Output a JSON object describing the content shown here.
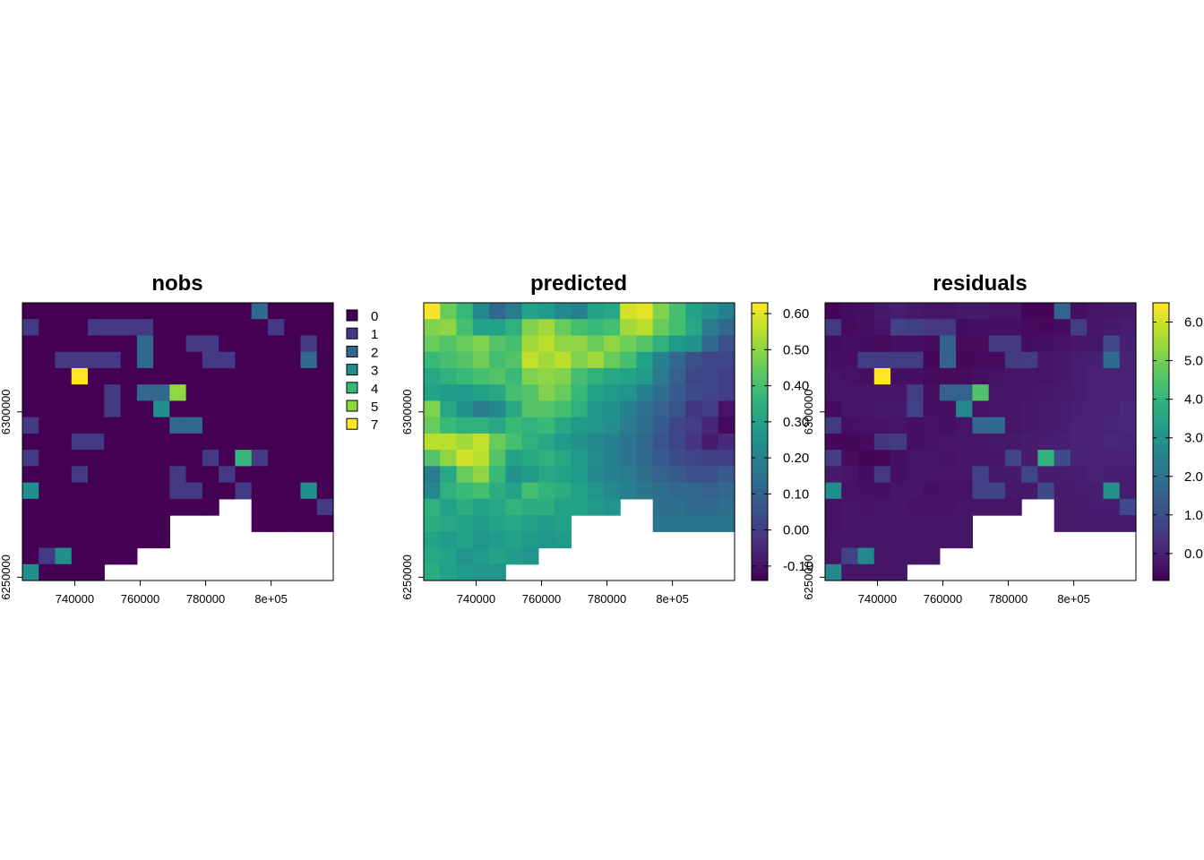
{
  "colors": {
    "viridis": [
      "#440154",
      "#482878",
      "#3E4A89",
      "#31688E",
      "#26828E",
      "#1F9E89",
      "#35B779",
      "#6DCD59",
      "#B4DE2C",
      "#FDE725"
    ],
    "background": "#FFFFFF"
  },
  "chart_data": [
    {
      "type": "heatmap",
      "title": "nobs",
      "x_ticks": [
        "740000",
        "760000",
        "780000",
        "8e+05"
      ],
      "x_tick_values": [
        740000,
        760000,
        780000,
        800000
      ],
      "y_ticks": [
        "6250000",
        "6300000"
      ],
      "y_tick_values": [
        6250000,
        6300000
      ],
      "xlim": [
        724000,
        819000
      ],
      "ylim": [
        6249000,
        6333000
      ],
      "grid": {
        "cols": 19,
        "rows": 17
      },
      "legend": {
        "kind": "categorical",
        "placement": "right",
        "labels": [
          "0",
          "1",
          "2",
          "3",
          "4",
          "5",
          "7"
        ],
        "values": [
          0,
          1,
          2,
          3,
          4,
          5,
          7
        ],
        "colors": [
          "#440154",
          "#443A83",
          "#31688E",
          "#21908C",
          "#35B779",
          "#8FD744",
          "#FDE725"
        ]
      },
      "values": [
        [
          0,
          0,
          0,
          0,
          0,
          0,
          0,
          0,
          0,
          0,
          0,
          0,
          0,
          0,
          2,
          0,
          0,
          0,
          0
        ],
        [
          1,
          0,
          0,
          0,
          1,
          1,
          1,
          1,
          0,
          0,
          0,
          0,
          0,
          0,
          0,
          1,
          0,
          0,
          0
        ],
        [
          0,
          0,
          0,
          0,
          0,
          0,
          0,
          2,
          0,
          0,
          1,
          1,
          0,
          0,
          0,
          0,
          0,
          1,
          0
        ],
        [
          0,
          0,
          1,
          1,
          1,
          1,
          0,
          2,
          0,
          0,
          0,
          1,
          1,
          0,
          0,
          0,
          0,
          2,
          0
        ],
        [
          0,
          0,
          0,
          7,
          0,
          0,
          0,
          0,
          0,
          0,
          0,
          0,
          0,
          0,
          0,
          0,
          0,
          0,
          0
        ],
        [
          0,
          0,
          0,
          0,
          0,
          1,
          0,
          2,
          2,
          5,
          0,
          0,
          0,
          0,
          0,
          0,
          0,
          0,
          0
        ],
        [
          0,
          0,
          0,
          0,
          0,
          1,
          0,
          0,
          3,
          0,
          0,
          0,
          0,
          0,
          0,
          0,
          0,
          0,
          0
        ],
        [
          1,
          0,
          0,
          0,
          0,
          0,
          0,
          0,
          0,
          2,
          2,
          0,
          0,
          0,
          0,
          0,
          0,
          0,
          0
        ],
        [
          0,
          0,
          0,
          1,
          1,
          0,
          0,
          0,
          0,
          0,
          0,
          0,
          0,
          0,
          0,
          0,
          0,
          0,
          0
        ],
        [
          1,
          0,
          0,
          0,
          0,
          0,
          0,
          0,
          0,
          0,
          0,
          1,
          0,
          4,
          1,
          0,
          0,
          0,
          0
        ],
        [
          0,
          0,
          0,
          1,
          0,
          0,
          0,
          0,
          0,
          1,
          0,
          0,
          1,
          0,
          0,
          0,
          0,
          0,
          0
        ],
        [
          3,
          0,
          0,
          0,
          0,
          0,
          0,
          0,
          0,
          1,
          1,
          0,
          0,
          1,
          0,
          0,
          0,
          3,
          0
        ],
        [
          0,
          0,
          0,
          0,
          0,
          0,
          0,
          0,
          0,
          0,
          0,
          0,
          null,
          null,
          0,
          0,
          0,
          0,
          1
        ],
        [
          0,
          0,
          0,
          0,
          0,
          0,
          0,
          0,
          0,
          null,
          null,
          null,
          null,
          null,
          0,
          0,
          0,
          0,
          0
        ],
        [
          0,
          0,
          0,
          0,
          0,
          0,
          0,
          0,
          0,
          null,
          null,
          null,
          null,
          null,
          null,
          null,
          null,
          null,
          null
        ],
        [
          0,
          1,
          3,
          0,
          0,
          0,
          0,
          null,
          null,
          null,
          null,
          null,
          null,
          null,
          null,
          null,
          null,
          null,
          null
        ],
        [
          3,
          0,
          0,
          0,
          0,
          null,
          null,
          null,
          null,
          null,
          null,
          null,
          null,
          null,
          null,
          null,
          null,
          null,
          null
        ]
      ]
    },
    {
      "type": "heatmap",
      "title": "predicted",
      "x_ticks": [
        "740000",
        "760000",
        "780000",
        "8e+05"
      ],
      "x_tick_values": [
        740000,
        760000,
        780000,
        800000
      ],
      "y_ticks": [
        "6250000",
        "6300000"
      ],
      "y_tick_values": [
        6250000,
        6300000
      ],
      "xlim": [
        724000,
        819000
      ],
      "ylim": [
        6249000,
        6333000
      ],
      "grid": {
        "cols": 19,
        "rows": 17
      },
      "legend": {
        "kind": "continuous",
        "placement": "right",
        "min": -0.14,
        "max": 0.63,
        "ticks": [
          "-0.10",
          "0.00",
          "0.10",
          "0.20",
          "0.30",
          "0.40",
          "0.50",
          "0.60"
        ],
        "tick_values": [
          -0.1,
          0.0,
          0.1,
          0.2,
          0.3,
          0.4,
          0.5,
          0.6
        ]
      },
      "values": [
        [
          0.62,
          0.45,
          0.38,
          0.22,
          0.12,
          0.18,
          0.3,
          0.28,
          0.22,
          0.2,
          0.3,
          0.32,
          0.58,
          0.6,
          0.48,
          0.4,
          0.3,
          0.25,
          0.2
        ],
        [
          0.48,
          0.5,
          0.4,
          0.3,
          0.3,
          0.35,
          0.48,
          0.52,
          0.45,
          0.4,
          0.38,
          0.4,
          0.52,
          0.55,
          0.45,
          0.4,
          0.32,
          0.18,
          0.12
        ],
        [
          0.45,
          0.42,
          0.45,
          0.48,
          0.42,
          0.4,
          0.52,
          0.55,
          0.5,
          0.5,
          0.45,
          0.5,
          0.46,
          0.42,
          0.35,
          0.28,
          0.25,
          0.12,
          0.05
        ],
        [
          0.38,
          0.4,
          0.42,
          0.46,
          0.4,
          0.42,
          0.56,
          0.52,
          0.55,
          0.48,
          0.52,
          0.45,
          0.4,
          0.3,
          0.2,
          0.12,
          0.05,
          0.02,
          0.02
        ],
        [
          0.32,
          0.35,
          0.38,
          0.4,
          0.42,
          0.38,
          0.48,
          0.5,
          0.48,
          0.4,
          0.35,
          0.32,
          0.3,
          0.28,
          0.18,
          0.1,
          0.02,
          0.02,
          0.0
        ],
        [
          0.3,
          0.28,
          0.28,
          0.3,
          0.32,
          0.4,
          0.42,
          0.48,
          0.45,
          0.38,
          0.3,
          0.28,
          0.26,
          0.2,
          0.14,
          0.08,
          0.04,
          0.02,
          0.0
        ],
        [
          0.48,
          0.32,
          0.25,
          0.18,
          0.22,
          0.32,
          0.42,
          0.42,
          0.4,
          0.35,
          0.26,
          0.25,
          0.2,
          0.15,
          0.1,
          0.06,
          -0.02,
          0.0,
          -0.1
        ],
        [
          0.45,
          0.38,
          0.35,
          0.35,
          0.32,
          0.38,
          0.36,
          0.38,
          0.32,
          0.28,
          0.26,
          0.24,
          0.18,
          0.14,
          0.08,
          0.02,
          0.0,
          -0.06,
          -0.12
        ],
        [
          0.55,
          0.55,
          0.52,
          0.56,
          0.45,
          0.4,
          0.35,
          0.32,
          0.28,
          0.25,
          0.22,
          0.2,
          0.16,
          0.12,
          0.06,
          0.02,
          -0.02,
          -0.08,
          -0.05
        ],
        [
          0.42,
          0.5,
          0.58,
          0.55,
          0.42,
          0.3,
          0.32,
          0.35,
          0.32,
          0.28,
          0.24,
          0.2,
          0.16,
          0.12,
          0.08,
          0.04,
          0.02,
          0.0,
          0.0
        ],
        [
          0.18,
          0.32,
          0.45,
          0.5,
          0.38,
          0.25,
          0.28,
          0.32,
          0.3,
          0.28,
          0.22,
          0.2,
          0.18,
          0.14,
          0.1,
          0.08,
          0.05,
          0.05,
          0.08
        ],
        [
          0.22,
          0.35,
          0.38,
          0.4,
          0.34,
          0.3,
          0.4,
          0.36,
          0.34,
          0.3,
          0.26,
          0.22,
          0.2,
          0.16,
          0.14,
          0.12,
          0.12,
          0.1,
          0.12
        ],
        [
          0.35,
          0.3,
          0.34,
          0.3,
          0.32,
          0.36,
          0.34,
          0.34,
          0.3,
          0.3,
          0.28,
          0.26,
          null,
          null,
          0.14,
          0.14,
          0.12,
          0.12,
          0.14
        ],
        [
          0.34,
          0.32,
          0.3,
          0.28,
          0.3,
          0.32,
          0.3,
          0.28,
          0.3,
          null,
          null,
          null,
          null,
          null,
          0.16,
          0.16,
          0.16,
          0.16,
          0.16
        ],
        [
          0.3,
          0.28,
          0.3,
          0.26,
          0.28,
          0.3,
          0.28,
          0.26,
          0.28,
          null,
          null,
          null,
          null,
          null,
          null,
          null,
          null,
          null,
          null
        ],
        [
          0.32,
          0.3,
          0.26,
          0.28,
          0.3,
          0.28,
          0.26,
          null,
          null,
          null,
          null,
          null,
          null,
          null,
          null,
          null,
          null,
          null,
          null
        ],
        [
          0.34,
          0.3,
          0.28,
          0.26,
          0.26,
          null,
          null,
          null,
          null,
          null,
          null,
          null,
          null,
          null,
          null,
          null,
          null,
          null,
          null
        ]
      ]
    },
    {
      "type": "heatmap",
      "title": "residuals",
      "x_ticks": [
        "740000",
        "760000",
        "780000",
        "8e+05"
      ],
      "x_tick_values": [
        740000,
        760000,
        780000,
        800000
      ],
      "y_ticks": [
        "6250000",
        "6300000"
      ],
      "y_tick_values": [
        6250000,
        6300000
      ],
      "xlim": [
        724000,
        819000
      ],
      "ylim": [
        6249000,
        6333000
      ],
      "grid": {
        "cols": 19,
        "rows": 17
      },
      "legend": {
        "kind": "continuous",
        "placement": "right",
        "min": -0.7,
        "max": 6.5,
        "ticks": [
          "0.0",
          "1.0",
          "2.0",
          "3.0",
          "4.0",
          "5.0",
          "6.0"
        ],
        "tick_values": [
          0,
          1,
          2,
          3,
          4,
          5,
          6
        ]
      },
      "values": [
        [
          -0.6,
          -0.45,
          -0.4,
          -0.2,
          -0.1,
          -0.2,
          -0.3,
          -0.3,
          -0.2,
          -0.2,
          -0.3,
          -0.3,
          -0.6,
          -0.6,
          1.5,
          -0.4,
          -0.3,
          -0.25,
          -0.2
        ],
        [
          0.5,
          -0.5,
          -0.4,
          -0.3,
          0.7,
          0.65,
          0.5,
          0.5,
          -0.45,
          -0.4,
          -0.4,
          -0.4,
          -0.5,
          -0.55,
          -0.45,
          0.6,
          -0.3,
          -0.2,
          -0.1
        ],
        [
          -0.45,
          -0.4,
          -0.45,
          -0.5,
          -0.4,
          -0.4,
          -0.5,
          1.45,
          -0.5,
          -0.5,
          0.55,
          0.5,
          -0.45,
          -0.4,
          -0.35,
          -0.3,
          -0.25,
          0.9,
          -0.05
        ],
        [
          -0.4,
          -0.4,
          0.6,
          0.55,
          0.6,
          0.6,
          -0.55,
          1.5,
          -0.55,
          -0.5,
          -0.5,
          0.55,
          0.6,
          -0.3,
          -0.2,
          -0.1,
          -0.05,
          1.8,
          0.0
        ],
        [
          -0.3,
          -0.35,
          -0.4,
          6.5,
          -0.4,
          -0.4,
          -0.5,
          -0.5,
          -0.5,
          -0.4,
          -0.35,
          -0.3,
          -0.3,
          -0.3,
          -0.2,
          -0.1,
          0.0,
          0.0,
          0.0
        ],
        [
          -0.3,
          -0.3,
          -0.3,
          -0.3,
          -0.3,
          0.6,
          -0.4,
          1.5,
          1.55,
          4.5,
          -0.3,
          -0.3,
          -0.25,
          -0.2,
          -0.15,
          -0.1,
          0.0,
          0.0,
          0.0
        ],
        [
          -0.5,
          -0.3,
          -0.25,
          -0.2,
          -0.2,
          0.7,
          -0.4,
          -0.4,
          2.6,
          -0.35,
          -0.25,
          -0.25,
          -0.2,
          -0.15,
          -0.1,
          -0.05,
          0.0,
          0.0,
          0.1
        ],
        [
          0.55,
          -0.4,
          -0.35,
          -0.35,
          -0.3,
          -0.4,
          -0.35,
          -0.4,
          -0.3,
          1.7,
          1.75,
          -0.25,
          -0.2,
          -0.15,
          -0.1,
          0.0,
          0.0,
          0.05,
          0.1
        ],
        [
          -0.55,
          -0.55,
          -0.5,
          0.45,
          0.55,
          -0.4,
          -0.35,
          -0.3,
          -0.3,
          -0.25,
          -0.2,
          -0.2,
          -0.15,
          -0.1,
          -0.05,
          0.0,
          0.0,
          0.1,
          0.05
        ],
        [
          0.6,
          -0.5,
          -0.6,
          -0.55,
          -0.4,
          -0.3,
          -0.3,
          -0.35,
          -0.3,
          -0.3,
          -0.25,
          0.8,
          -0.15,
          3.9,
          0.9,
          0.0,
          0.0,
          0.0,
          0.0
        ],
        [
          -0.2,
          -0.3,
          -0.45,
          0.5,
          -0.4,
          -0.25,
          -0.3,
          -0.3,
          -0.3,
          0.7,
          -0.2,
          -0.2,
          0.8,
          -0.15,
          -0.1,
          -0.1,
          0.0,
          -0.05,
          -0.1
        ],
        [
          2.8,
          -0.35,
          -0.4,
          -0.4,
          -0.3,
          -0.3,
          -0.4,
          -0.35,
          -0.35,
          0.7,
          0.75,
          -0.2,
          -0.2,
          0.85,
          -0.15,
          -0.1,
          -0.1,
          2.9,
          -0.1
        ],
        [
          -0.35,
          -0.3,
          -0.35,
          -0.3,
          -0.3,
          -0.35,
          -0.35,
          -0.35,
          -0.3,
          -0.3,
          -0.3,
          -0.25,
          null,
          null,
          -0.15,
          -0.15,
          -0.1,
          -0.1,
          0.9
        ],
        [
          -0.35,
          -0.3,
          -0.3,
          -0.3,
          -0.3,
          -0.3,
          -0.3,
          -0.3,
          -0.3,
          null,
          null,
          null,
          null,
          null,
          -0.15,
          -0.15,
          -0.15,
          -0.15,
          -0.15
        ],
        [
          -0.3,
          -0.3,
          -0.3,
          -0.25,
          -0.3,
          -0.3,
          -0.3,
          -0.25,
          -0.3,
          null,
          null,
          null,
          null,
          null,
          null,
          null,
          null,
          null,
          null
        ],
        [
          -0.3,
          0.7,
          2.7,
          -0.3,
          -0.3,
          -0.3,
          -0.25,
          null,
          null,
          null,
          null,
          null,
          null,
          null,
          null,
          null,
          null,
          null,
          null
        ],
        [
          2.7,
          -0.3,
          -0.3,
          -0.25,
          -0.25,
          null,
          null,
          null,
          null,
          null,
          null,
          null,
          null,
          null,
          null,
          null,
          null,
          null,
          null
        ]
      ]
    }
  ]
}
